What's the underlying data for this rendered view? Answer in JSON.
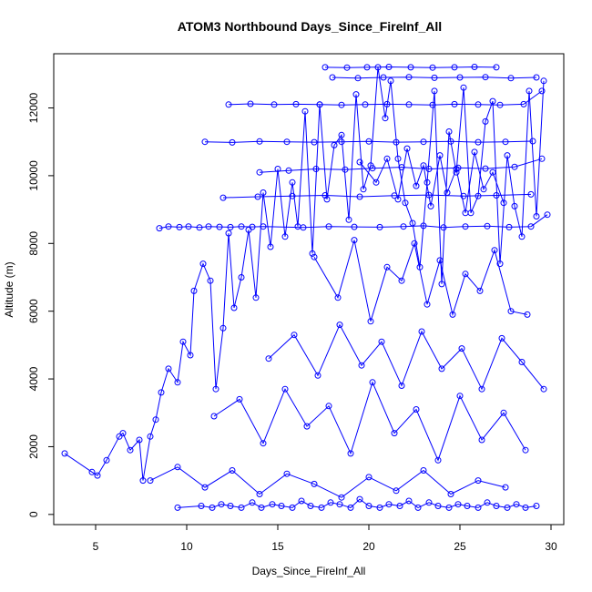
{
  "chart_data": {
    "type": "line",
    "title": "ATOM3 Northbound Days_Since_FireInf_All",
    "xlabel": "Days_Since_FireInf_All",
    "ylabel": "Altitude (m)",
    "xlim": [
      2.7,
      30.7
    ],
    "ylim": [
      -300,
      13600
    ],
    "xticks": [
      5,
      10,
      15,
      20,
      25,
      30
    ],
    "yticks": [
      0,
      2000,
      4000,
      6000,
      8000,
      10000,
      12000
    ],
    "x_tick_labels": [
      "5",
      "10",
      "15",
      "20",
      "25",
      "30"
    ],
    "y_tick_labels": [
      "0",
      "2000",
      "4000",
      "6000",
      "8000",
      "10000",
      "12000"
    ],
    "grid": false,
    "legend": "none",
    "marker": "open-circle",
    "line_color": "#0000ff",
    "series": [
      {
        "x": [
          3.3,
          4.8,
          5.1,
          5.6,
          6.3,
          6.5,
          6.9,
          7.4,
          7.6,
          8.0,
          8.3,
          8.6,
          9.0,
          9.5,
          9.8,
          10.2,
          10.4,
          10.9,
          11.3,
          11.6,
          12.0,
          12.3,
          12.6,
          13.0,
          13.4,
          13.8,
          14.2,
          14.6,
          15.0,
          15.4,
          15.8,
          16.1,
          16.5,
          16.9,
          17.3,
          17.7,
          18.1,
          18.5,
          18.9,
          19.3,
          19.7,
          20.1,
          20.5,
          20.9,
          21.2,
          21.6,
          22.0,
          22.4,
          22.8,
          23.2,
          23.6,
          24.0,
          24.4,
          24.8,
          25.2,
          25.6,
          26.0,
          26.4,
          26.8,
          27.2,
          27.6,
          28.0,
          28.4,
          28.8,
          29.2,
          29.6
        ],
        "y": [
          1800,
          1250,
          1150,
          1600,
          2300,
          2400,
          1900,
          2200,
          1000,
          2300,
          2800,
          3600,
          4300,
          3900,
          5100,
          4700,
          6600,
          7400,
          6900,
          3700,
          5500,
          8300,
          6100,
          7000,
          8400,
          6400,
          9500,
          7900,
          10200,
          8200,
          9800,
          8500,
          11900,
          7700,
          12100,
          9300,
          10900,
          11200,
          8700,
          12400,
          9600,
          10300,
          13200,
          11700,
          12800,
          10500,
          9200,
          8600,
          7300,
          9800,
          12500,
          6800,
          11300,
          10100,
          12600,
          8900,
          9400,
          11600,
          12200,
          7400,
          10600,
          9100,
          8200,
          12500,
          8800,
          12800
        ]
      },
      {
        "x": [
          9.5,
          10.8,
          11.4,
          11.9,
          12.4,
          13.0,
          13.6,
          14.1,
          14.7,
          15.2,
          15.8,
          16.3,
          16.8,
          17.4,
          17.9,
          18.4,
          19.0,
          19.5,
          20.0,
          20.6,
          21.1,
          21.7,
          22.2,
          22.7,
          23.3,
          23.8,
          24.4,
          24.9,
          25.4,
          26.0,
          26.5,
          27.0,
          27.6,
          28.1,
          28.6,
          29.2
        ],
        "y": [
          200,
          250,
          200,
          300,
          250,
          200,
          350,
          200,
          300,
          250,
          200,
          400,
          250,
          200,
          350,
          300,
          200,
          450,
          250,
          200,
          300,
          250,
          400,
          200,
          350,
          250,
          200,
          300,
          250,
          200,
          350,
          250,
          200,
          300,
          200,
          250
        ]
      },
      {
        "x": [
          8.5,
          9.0,
          9.6,
          10.1,
          10.7,
          11.2,
          11.8,
          12.4,
          13.0,
          13.6,
          14.2,
          16.4,
          17.8,
          19.2,
          20.6,
          21.9,
          23.0,
          24.1,
          25.3,
          26.5,
          27.7,
          28.9,
          29.8
        ],
        "y": [
          8450,
          8500,
          8480,
          8500,
          8470,
          8500,
          8490,
          8480,
          8500,
          8490,
          8500,
          8470,
          8500,
          8490,
          8480,
          8500,
          8520,
          8470,
          8500,
          8510,
          8480,
          8500,
          8850
        ]
      },
      {
        "x": [
          17.6,
          18.8,
          19.9,
          21.1,
          22.3,
          23.5,
          24.7,
          25.8,
          27.0
        ],
        "y": [
          13200,
          13190,
          13200,
          13210,
          13200,
          13190,
          13200,
          13210,
          13200
        ]
      },
      {
        "x": [
          12.3,
          13.5,
          14.8,
          16.0,
          17.3,
          18.5,
          19.8,
          21.0,
          22.2,
          23.5,
          24.7,
          26.0,
          27.2,
          28.5,
          29.5
        ],
        "y": [
          12100,
          12120,
          12100,
          12110,
          12100,
          12090,
          12100,
          12110,
          12100,
          12090,
          12110,
          12100,
          12090,
          12110,
          12500
        ]
      },
      {
        "x": [
          11.0,
          12.5,
          14.0,
          15.5,
          17.0,
          18.5,
          20.0,
          21.5,
          23.0,
          24.5,
          26.0,
          27.5,
          29.0
        ],
        "y": [
          11000,
          10980,
          11010,
          11000,
          10990,
          11000,
          11010,
          10990,
          11000,
          11010,
          10990,
          11000,
          11020
        ]
      },
      {
        "x": [
          14.0,
          15.6,
          17.1,
          18.7,
          20.2,
          21.8,
          23.3,
          24.9,
          26.4,
          28.0,
          29.5
        ],
        "y": [
          10100,
          10150,
          10200,
          10180,
          10220,
          10250,
          10200,
          10230,
          10210,
          10260,
          10500
        ]
      },
      {
        "x": [
          12.0,
          13.9,
          15.8,
          17.6,
          19.5,
          21.4,
          23.3,
          25.2,
          27.0,
          28.9
        ],
        "y": [
          9350,
          9380,
          9400,
          9420,
          9380,
          9410,
          9430,
          9400,
          9420,
          9450
        ]
      },
      {
        "x": [
          18.0,
          19.4,
          20.8,
          22.2,
          23.6,
          25.0,
          26.4,
          27.8,
          29.2
        ],
        "y": [
          12900,
          12880,
          12900,
          12910,
          12890,
          12900,
          12910,
          12880,
          12900
        ]
      },
      {
        "x": [
          19.5,
          20.4,
          21.0,
          21.6,
          22.1,
          22.6,
          23.0,
          23.4,
          23.9,
          24.3,
          24.8,
          25.3,
          25.8,
          26.3,
          26.8,
          27.4
        ],
        "y": [
          10400,
          9800,
          10500,
          9300,
          10800,
          9700,
          10300,
          9100,
          10600,
          9500,
          10200,
          8900,
          10700,
          9600,
          10100,
          9200
        ]
      },
      {
        "x": [
          17.0,
          18.3,
          19.2,
          20.1,
          21.0,
          21.8,
          22.5,
          23.2,
          23.9,
          24.6,
          25.3,
          26.1,
          26.9,
          27.8,
          28.7
        ],
        "y": [
          7600,
          6400,
          8100,
          5700,
          7300,
          6900,
          8000,
          6200,
          7500,
          5900,
          7100,
          6600,
          7800,
          6000,
          5900
        ]
      },
      {
        "x": [
          11.5,
          12.9,
          14.2,
          15.4,
          16.6,
          17.8,
          19.0,
          20.2,
          21.4,
          22.6,
          23.8,
          25.0,
          26.2,
          27.4,
          28.6
        ],
        "y": [
          2900,
          3400,
          2100,
          3700,
          2600,
          3200,
          1800,
          3900,
          2400,
          3100,
          1600,
          3500,
          2200,
          3000,
          1900
        ]
      },
      {
        "x": [
          8.0,
          9.5,
          11.0,
          12.5,
          14.0,
          15.5,
          17.0,
          18.5,
          20.0,
          21.5,
          23.0,
          24.5,
          26.0,
          27.5
        ],
        "y": [
          1000,
          1400,
          800,
          1300,
          600,
          1200,
          900,
          500,
          1100,
          700,
          1300,
          600,
          1000,
          800
        ]
      },
      {
        "x": [
          14.5,
          15.9,
          17.2,
          18.4,
          19.6,
          20.7,
          21.8,
          22.9,
          24.0,
          25.1,
          26.2,
          27.3,
          28.4,
          29.6
        ],
        "y": [
          4600,
          5300,
          4100,
          5600,
          4400,
          5100,
          3800,
          5400,
          4300,
          4900,
          3700,
          5200,
          4500,
          3700
        ]
      }
    ]
  }
}
